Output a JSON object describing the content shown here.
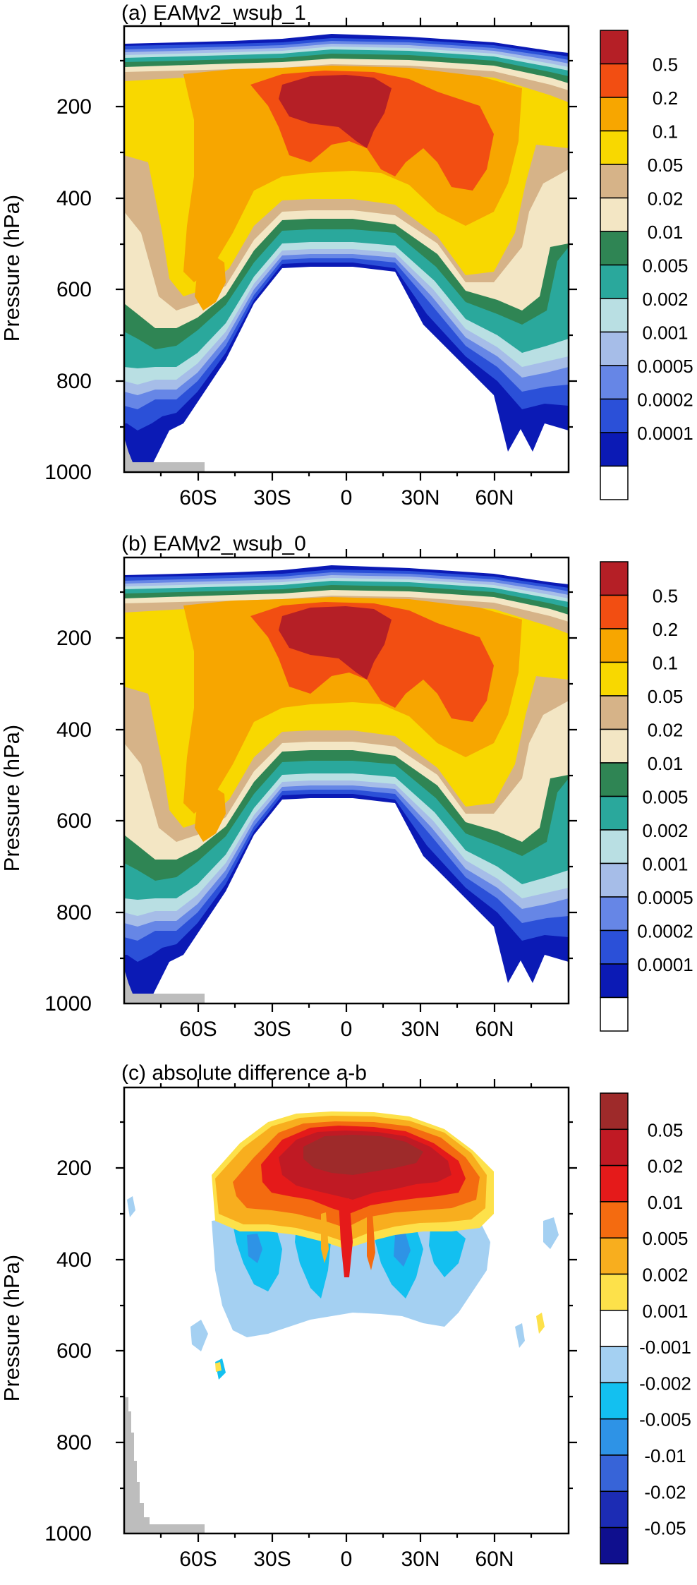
{
  "colors": {
    "panel_a_b": [
      "#ffffff",
      "#0b1ab5",
      "#2b50d8",
      "#6686e6",
      "#a6bde8",
      "#b9dfe3",
      "#2aa89c",
      "#2f8554",
      "#f3e6c4",
      "#d6b388",
      "#f8d800",
      "#f7a600",
      "#f24e12",
      "#b51f26"
    ],
    "panel_c": [
      "#0f0f8e",
      "#1c2cb4",
      "#3764d8",
      "#2e93e6",
      "#13c0f0",
      "#a4d0f2",
      "#ffffff",
      "#fde14a",
      "#f8ae1e",
      "#f46b10",
      "#e51a1a",
      "#c01a24",
      "#9e2a2a"
    ],
    "land": "#bdbdbd"
  },
  "chart_data": [
    {
      "type": "contour",
      "title": "(a) EAMv2_wsub_1",
      "ylabel": "Pressure (hPa)",
      "xlabel": "",
      "ylim": [
        1000,
        50
      ],
      "xlim": [
        -90,
        90
      ],
      "xticks": [
        {
          "label": "60S",
          "value": -60
        },
        {
          "label": "30S",
          "value": -30
        },
        {
          "label": "0",
          "value": 0
        },
        {
          "label": "30N",
          "value": 30
        },
        {
          "label": "60N",
          "value": 60
        }
      ],
      "yticks": [
        {
          "label": "200",
          "value": 200
        },
        {
          "label": "400",
          "value": 400
        },
        {
          "label": "600",
          "value": 600
        },
        {
          "label": "800",
          "value": 800
        },
        {
          "label": "1000",
          "value": 1000
        }
      ],
      "levels": [
        "0.0001",
        "0.0002",
        "0.0005",
        "0.001",
        "0.002",
        "0.005",
        "0.01",
        "0.02",
        "0.05",
        "0.1",
        "0.2",
        "0.5"
      ],
      "field": {
        "top_edge_hpa": 100,
        "bottom_center_hpa": 550,
        "bottom_sh_hpa": 650,
        "bottom_nh_hpa": 640,
        "max_lat": 5,
        "max_hpa": 200,
        "max_value": "0.5",
        "sh_blob_lat": -62,
        "sh_blob_hpa": 600,
        "nh_lobe_lat": 40,
        "nh_lobe_hpa": 280
      }
    },
    {
      "type": "contour",
      "title": "(b) EAMv2_wsub_0",
      "ylabel": "Pressure (hPa)",
      "xlabel": "",
      "ylim": [
        1000,
        50
      ],
      "xlim": [
        -90,
        90
      ],
      "xticks": [
        {
          "label": "60S",
          "value": -60
        },
        {
          "label": "30S",
          "value": -30
        },
        {
          "label": "0",
          "value": 0
        },
        {
          "label": "30N",
          "value": 30
        },
        {
          "label": "60N",
          "value": 60
        }
      ],
      "yticks": [
        {
          "label": "200",
          "value": 200
        },
        {
          "label": "400",
          "value": 400
        },
        {
          "label": "600",
          "value": 600
        },
        {
          "label": "800",
          "value": 800
        },
        {
          "label": "1000",
          "value": 1000
        }
      ],
      "levels": [
        "0.0001",
        "0.0002",
        "0.0005",
        "0.001",
        "0.002",
        "0.005",
        "0.01",
        "0.02",
        "0.05",
        "0.1",
        "0.2",
        "0.5"
      ],
      "field": {
        "top_edge_hpa": 100,
        "bottom_center_hpa": 550,
        "bottom_sh_hpa": 650,
        "bottom_nh_hpa": 640,
        "max_lat": 5,
        "max_hpa": 200,
        "max_value": "0.5",
        "sh_blob_lat": -62,
        "sh_blob_hpa": 600,
        "nh_lobe_lat": 40,
        "nh_lobe_hpa": 280
      }
    },
    {
      "type": "contour",
      "title": "(c) absolute difference a-b",
      "ylabel": "Pressure (hPa)",
      "xlabel": "",
      "ylim": [
        1000,
        50
      ],
      "xlim": [
        -90,
        90
      ],
      "xticks": [
        {
          "label": "60S",
          "value": -60
        },
        {
          "label": "30S",
          "value": -30
        },
        {
          "label": "0",
          "value": 0
        },
        {
          "label": "30N",
          "value": 30
        },
        {
          "label": "60N",
          "value": 60
        }
      ],
      "yticks": [
        {
          "label": "200",
          "value": 200
        },
        {
          "label": "400",
          "value": 400
        },
        {
          "label": "600",
          "value": 600
        },
        {
          "label": "800",
          "value": 800
        },
        {
          "label": "1000",
          "value": 1000
        }
      ],
      "levels": [
        "-0.05",
        "-0.02",
        "-0.01",
        "-0.005",
        "-0.002",
        "-0.001",
        "0.001",
        "0.002",
        "0.005",
        "0.01",
        "0.02",
        "0.05"
      ],
      "field": {
        "positive_lat_range": [
          -48,
          48
        ],
        "positive_hpa_range": [
          100,
          300
        ],
        "max_value": "0.05",
        "max_lat": 0,
        "max_hpa": 150,
        "negative_lat_range": [
          -45,
          45
        ],
        "negative_hpa_range": [
          250,
          500
        ]
      }
    }
  ]
}
